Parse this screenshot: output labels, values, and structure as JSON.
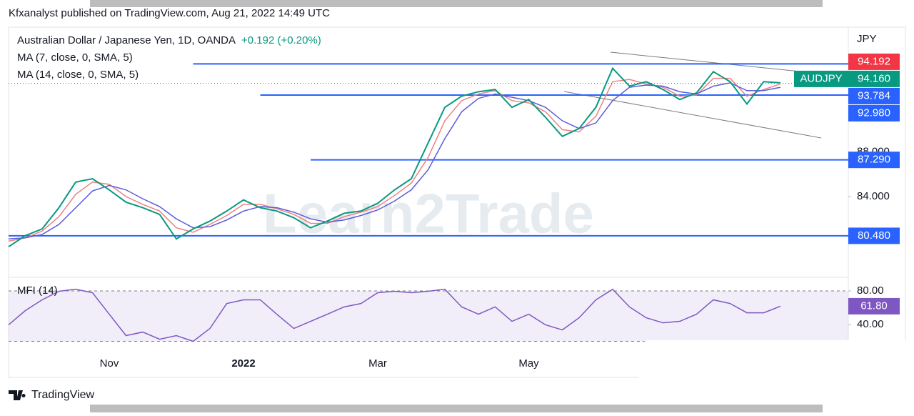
{
  "header": {
    "title": "Kfxanalyst published on TradingView.com, Aug 21, 2022 14:49 UTC"
  },
  "watermark": "Learn2Trade",
  "footer": {
    "brand": "TradingView"
  },
  "chart_data": [
    {
      "type": "line",
      "title": "Australian Dollar / Japanese Yen, 1D, OANDA",
      "change": "+0.192 (+0.20%)",
      "currency": "JPY",
      "categories": [
        null,
        null,
        null,
        null,
        null,
        null,
        "Nov",
        null,
        null,
        null,
        null,
        null,
        null,
        null,
        "2022",
        null,
        null,
        null,
        null,
        null,
        null,
        null,
        "Mar",
        null,
        null,
        null,
        null,
        null,
        null,
        null,
        null,
        "May",
        null,
        null,
        null,
        null,
        null,
        null,
        null,
        null,
        null,
        null,
        null,
        null,
        null,
        null,
        null
      ],
      "values": [
        79.5,
        80.5,
        81.1,
        83.0,
        85.3,
        85.6,
        84.6,
        83.5,
        83.0,
        82.4,
        80.2,
        81.1,
        81.8,
        82.7,
        83.7,
        83.0,
        82.7,
        82.1,
        81.2,
        81.8,
        82.5,
        82.7,
        83.4,
        84.6,
        85.6,
        88.8,
        92.0,
        93.0,
        93.4,
        93.6,
        92.0,
        92.7,
        91.1,
        89.4,
        90.1,
        92.0,
        95.5,
        93.9,
        94.3,
        93.6,
        92.7,
        93.3,
        95.2,
        94.3,
        92.3,
        94.3,
        94.2
      ],
      "color": "#089981",
      "series": [
        {
          "name": "MA (7, close, 0, SMA, 5)",
          "color": "#f08080",
          "values": [
            80.0,
            80.3,
            80.9,
            82.2,
            84.2,
            85.3,
            85.1,
            84.0,
            83.3,
            82.7,
            81.2,
            80.8,
            81.5,
            82.3,
            83.3,
            83.3,
            82.9,
            82.4,
            81.6,
            81.6,
            82.2,
            82.6,
            83.1,
            84.1,
            85.2,
            87.5,
            90.8,
            92.6,
            93.2,
            93.5,
            92.6,
            92.4,
            91.6,
            90.0,
            89.8,
            91.2,
            94.3,
            94.5,
            94.1,
            93.8,
            93.0,
            93.1,
            94.6,
            94.6,
            93.0,
            93.6,
            94.1
          ]
        },
        {
          "name": "MA (14, close, 0, SMA, 5)",
          "color": "#5b5bdc",
          "values": [
            80.2,
            80.3,
            80.6,
            81.5,
            83.0,
            84.5,
            85.0,
            84.6,
            83.8,
            83.1,
            82.0,
            81.2,
            81.3,
            81.9,
            82.7,
            83.1,
            83.0,
            82.6,
            82.0,
            81.7,
            81.9,
            82.3,
            82.8,
            83.6,
            84.6,
            86.4,
            89.2,
            91.6,
            92.8,
            93.2,
            92.9,
            92.6,
            92.0,
            90.8,
            90.1,
            90.6,
            92.6,
            93.8,
            94.0,
            93.9,
            93.4,
            93.2,
            93.9,
            94.2,
            93.5,
            93.5,
            93.8
          ]
        }
      ],
      "ylim": [
        76.95,
        99.19
      ],
      "yticks": [
        {
          "value": 84,
          "label": "84.000"
        },
        {
          "value": 88,
          "label": "88.000"
        }
      ],
      "levels": [
        {
          "value": 95.9,
          "from": 11
        },
        {
          "value": 93.1,
          "from": 15
        },
        {
          "value": 87.29,
          "from": 18
        },
        {
          "value": 80.48,
          "from": 0
        }
      ],
      "badges": [
        {
          "value": 94.192,
          "label": "94.192",
          "color": "#f23645"
        },
        {
          "value": 94.16,
          "label": "94.160",
          "color": "#089981",
          "name": "AUDJPY"
        },
        {
          "value": 93.784,
          "label": "93.784",
          "color": "#2962ff"
        },
        {
          "value": 92.98,
          "label": "92.980",
          "color": "#2962ff"
        },
        {
          "value": 87.29,
          "label": "87.290",
          "color": "#2962ff"
        },
        {
          "value": 80.48,
          "label": "80.480",
          "color": "#2962ff"
        }
      ]
    },
    {
      "type": "line",
      "title": "MFI (14)",
      "values": [
        39.6,
        56.6,
        69.4,
        79.6,
        82,
        77.9,
        52.3,
        26.8,
        31,
        22.5,
        26.8,
        20,
        35.3,
        65,
        69.4,
        69.4,
        52,
        35.3,
        43.8,
        52.3,
        61,
        65,
        77.9,
        79.6,
        77.9,
        79.6,
        82,
        61,
        52.3,
        61,
        43.8,
        52.3,
        39.6,
        33.6,
        48,
        69.4,
        82,
        61,
        48,
        42,
        43.8,
        52.3,
        69.4,
        65,
        54,
        54,
        61.8
      ],
      "color": "#7e57c2",
      "ylim": [
        0.85,
        92.8
      ],
      "yticks": [
        {
          "value": 80,
          "label": "80.00"
        },
        {
          "value": 40,
          "label": "40.00"
        }
      ],
      "band": [
        20,
        80
      ],
      "badges": [
        {
          "value": 61.8,
          "label": "61.80",
          "color": "#7e57c2"
        }
      ]
    }
  ]
}
